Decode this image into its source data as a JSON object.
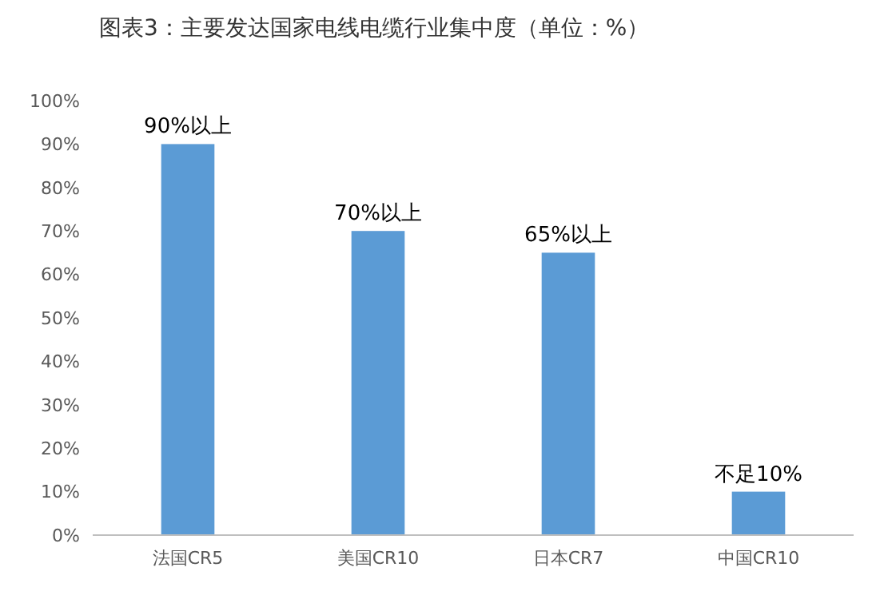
{
  "chart_data": {
    "type": "bar",
    "title": "图表3：主要发达国家电线电缆行业集中度（单位：%）",
    "categories": [
      "法国CR5",
      "美国CR10",
      "日本CR7",
      "中国CR10"
    ],
    "values": [
      90,
      70,
      65,
      10
    ],
    "value_labels": [
      "90%以上",
      "70%以上",
      "65%以上",
      "不足10%"
    ],
    "color": "#5b9bd5",
    "ylim": [
      0,
      100
    ],
    "yticks": [
      {
        "value": 0,
        "label": "0%"
      },
      {
        "value": 10,
        "label": "10%"
      },
      {
        "value": 20,
        "label": "20%"
      },
      {
        "value": 30,
        "label": "30%"
      },
      {
        "value": 40,
        "label": "40%"
      },
      {
        "value": 50,
        "label": "50%"
      },
      {
        "value": 60,
        "label": "60%"
      },
      {
        "value": 70,
        "label": "70%"
      },
      {
        "value": 80,
        "label": "80%"
      },
      {
        "value": 90,
        "label": "90%"
      },
      {
        "value": 100,
        "label": "100%"
      }
    ],
    "grid": false
  }
}
